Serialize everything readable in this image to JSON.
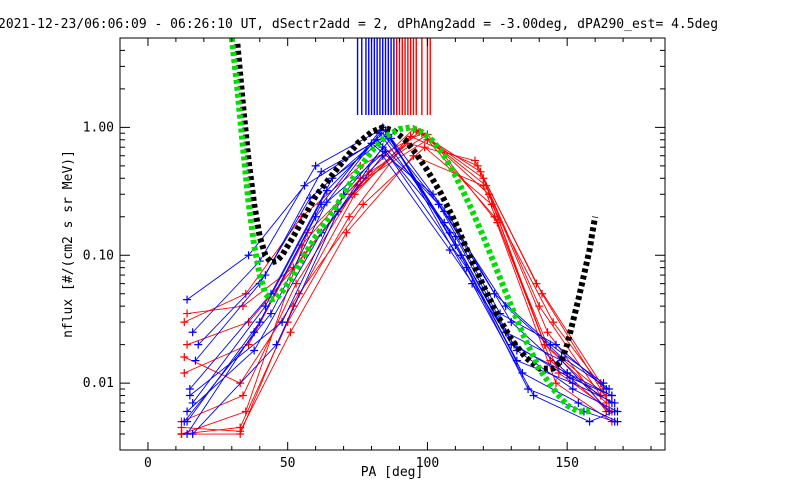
{
  "chart_data": {
    "type": "scatter",
    "title": "2021-12-23/06:06:09 - 06:26:10 UT, dSectr2add = 2, dPhAng2add = -3.00deg, dPA290_est=   4.5deg",
    "xlabel": "PA [deg]",
    "ylabel": "nflux [#/(cm2 s sr MeV)]",
    "xlim": [
      -10,
      185
    ],
    "ylim": [
      0.003,
      5.0
    ],
    "yscale": "log",
    "grid": false,
    "xticks": [
      0,
      50,
      100,
      150
    ],
    "xtick_labels": [
      "0",
      "50",
      "100",
      "150"
    ],
    "yticks": [
      0.01,
      0.1,
      1.0
    ],
    "ytick_labels": [
      "0.01",
      "0.10",
      "1.00"
    ],
    "colors": {
      "blue": "#0000ff",
      "red": "#ff0000",
      "black": "#000000",
      "green": "#00dd00"
    },
    "series": [
      {
        "color": "black",
        "style": "thick-dashed",
        "x": [
          32,
          34,
          36,
          38,
          40,
          42,
          44,
          46,
          48,
          52,
          56,
          60,
          65,
          70,
          75,
          80,
          84,
          88,
          92,
          96,
          100,
          105,
          110,
          115,
          120,
          125,
          130,
          135,
          140,
          145,
          148,
          150,
          152,
          154,
          156,
          158,
          159,
          160
        ],
        "y": [
          4.5,
          1.5,
          0.55,
          0.25,
          0.14,
          0.1,
          0.088,
          0.09,
          0.1,
          0.14,
          0.2,
          0.29,
          0.4,
          0.55,
          0.75,
          0.92,
          1.0,
          0.94,
          0.8,
          0.62,
          0.46,
          0.3,
          0.18,
          0.1,
          0.058,
          0.034,
          0.022,
          0.016,
          0.013,
          0.013,
          0.015,
          0.02,
          0.03,
          0.045,
          0.07,
          0.11,
          0.15,
          0.2
        ]
      },
      {
        "color": "green",
        "style": "thick-dashed",
        "x": [
          30,
          32,
          34,
          36,
          38,
          40,
          42,
          44,
          46,
          48,
          52,
          56,
          60,
          65,
          70,
          75,
          80,
          85,
          90,
          94,
          98,
          102,
          106,
          110,
          115,
          120,
          125,
          130,
          135,
          140,
          145,
          150,
          154,
          157,
          159
        ],
        "y": [
          5.0,
          2.0,
          0.7,
          0.26,
          0.12,
          0.07,
          0.05,
          0.045,
          0.046,
          0.052,
          0.07,
          0.1,
          0.14,
          0.2,
          0.3,
          0.46,
          0.65,
          0.85,
          0.97,
          1.0,
          0.92,
          0.78,
          0.6,
          0.42,
          0.25,
          0.14,
          0.075,
          0.04,
          0.022,
          0.013,
          0.009,
          0.0067,
          0.006,
          0.006,
          0.0062
        ]
      }
    ],
    "flux_curves": {
      "blue": [
        {
          "x": [
            14,
            40,
            62,
            84,
            108,
            130,
            150,
            166
          ],
          "y": [
            0.005,
            0.03,
            0.25,
            1.0,
            0.15,
            0.02,
            0.012,
            0.008
          ]
        },
        {
          "x": [
            16,
            42,
            64,
            85,
            110,
            132,
            152,
            167
          ],
          "y": [
            0.007,
            0.04,
            0.32,
            0.95,
            0.12,
            0.015,
            0.01,
            0.007
          ]
        },
        {
          "x": [
            14,
            38,
            60,
            83,
            106,
            128,
            148,
            165
          ],
          "y": [
            0.004,
            0.025,
            0.2,
            0.9,
            0.18,
            0.025,
            0.015,
            0.006
          ]
        },
        {
          "x": [
            15,
            44,
            66,
            86,
            112,
            134,
            154,
            168
          ],
          "y": [
            0.009,
            0.05,
            0.4,
            0.85,
            0.1,
            0.012,
            0.007,
            0.005
          ]
        },
        {
          "x": [
            17,
            40,
            58,
            82,
            104,
            126,
            146,
            164
          ],
          "y": [
            0.015,
            0.06,
            0.28,
            0.8,
            0.25,
            0.035,
            0.02,
            0.009
          ]
        },
        {
          "x": [
            16,
            46,
            68,
            84,
            114,
            136,
            156,
            167
          ],
          "y": [
            0.004,
            0.02,
            0.22,
            0.7,
            0.08,
            0.009,
            0.006,
            0.005
          ]
        },
        {
          "x": [
            14,
            36,
            56,
            80,
            102,
            124,
            144,
            163
          ],
          "y": [
            0.045,
            0.1,
            0.35,
            0.75,
            0.3,
            0.05,
            0.02,
            0.01
          ]
        },
        {
          "x": [
            18,
            42,
            62,
            86,
            108,
            130,
            150,
            166
          ],
          "y": [
            0.02,
            0.07,
            0.45,
            0.88,
            0.2,
            0.03,
            0.012,
            0.007
          ]
        },
        {
          "x": [
            13,
            44,
            64,
            85,
            110,
            132,
            152,
            168
          ],
          "y": [
            0.005,
            0.035,
            0.26,
            0.65,
            0.14,
            0.018,
            0.009,
            0.006
          ]
        },
        {
          "x": [
            15,
            48,
            70,
            87,
            116,
            138,
            158,
            167
          ],
          "y": [
            0.008,
            0.03,
            0.3,
            0.82,
            0.06,
            0.008,
            0.005,
            0.006
          ]
        },
        {
          "x": [
            16,
            40,
            60,
            83,
            106,
            128,
            148,
            165
          ],
          "y": [
            0.025,
            0.09,
            0.5,
            0.95,
            0.22,
            0.04,
            0.016,
            0.009
          ]
        },
        {
          "x": [
            14,
            38,
            62,
            84,
            108,
            131,
            151,
            166
          ],
          "y": [
            0.006,
            0.018,
            0.15,
            0.6,
            0.11,
            0.02,
            0.011,
            0.008
          ]
        }
      ],
      "red": [
        {
          "x": [
            12,
            33,
            52,
            74,
            96,
            120,
            142,
            164
          ],
          "y": [
            0.004,
            0.004,
            0.04,
            0.3,
            0.95,
            0.4,
            0.02,
            0.007
          ]
        },
        {
          "x": [
            13,
            35,
            55,
            76,
            98,
            122,
            144,
            165
          ],
          "y": [
            0.03,
            0.05,
            0.2,
            0.5,
            0.9,
            0.3,
            0.015,
            0.006
          ]
        },
        {
          "x": [
            12,
            33,
            50,
            72,
            94,
            118,
            140,
            162
          ],
          "y": [
            0.004,
            0.0045,
            0.03,
            0.2,
            0.85,
            0.5,
            0.04,
            0.008
          ]
        },
        {
          "x": [
            14,
            36,
            56,
            78,
            100,
            124,
            146,
            166
          ],
          "y": [
            0.02,
            0.03,
            0.1,
            0.4,
            0.8,
            0.2,
            0.01,
            0.005
          ]
        },
        {
          "x": [
            12,
            34,
            53,
            75,
            97,
            121,
            143,
            164
          ],
          "y": [
            0.005,
            0.008,
            0.06,
            0.35,
            0.92,
            0.35,
            0.025,
            0.006
          ]
        },
        {
          "x": [
            13,
            33,
            54,
            77,
            99,
            123,
            145,
            163
          ],
          "y": [
            0.016,
            0.01,
            0.05,
            0.25,
            0.7,
            0.25,
            0.03,
            0.009
          ]
        },
        {
          "x": [
            12,
            35,
            57,
            79,
            95,
            119,
            141,
            165
          ],
          "y": [
            0.004,
            0.006,
            0.15,
            0.45,
            0.97,
            0.45,
            0.05,
            0.007
          ]
        },
        {
          "x": [
            14,
            34,
            52,
            73,
            93,
            117,
            139,
            162
          ],
          "y": [
            0.035,
            0.04,
            0.08,
            0.3,
            0.75,
            0.55,
            0.06,
            0.01
          ]
        },
        {
          "x": [
            12,
            33,
            51,
            71,
            95,
            120,
            142,
            164
          ],
          "y": [
            0.0045,
            0.0042,
            0.025,
            0.15,
            0.6,
            0.35,
            0.02,
            0.008
          ]
        },
        {
          "x": [
            13,
            36,
            55,
            76,
            100,
            125,
            147,
            166
          ],
          "y": [
            0.012,
            0.02,
            0.12,
            0.4,
            0.88,
            0.18,
            0.012,
            0.006
          ]
        }
      ]
    },
    "vertical_markers": {
      "blue": [
        75,
        76.5,
        78,
        79,
        80,
        81,
        82,
        83,
        84,
        85,
        86,
        87,
        88
      ],
      "red": [
        89,
        90,
        91,
        92,
        93,
        94,
        95,
        96,
        98,
        100,
        101
      ]
    }
  }
}
